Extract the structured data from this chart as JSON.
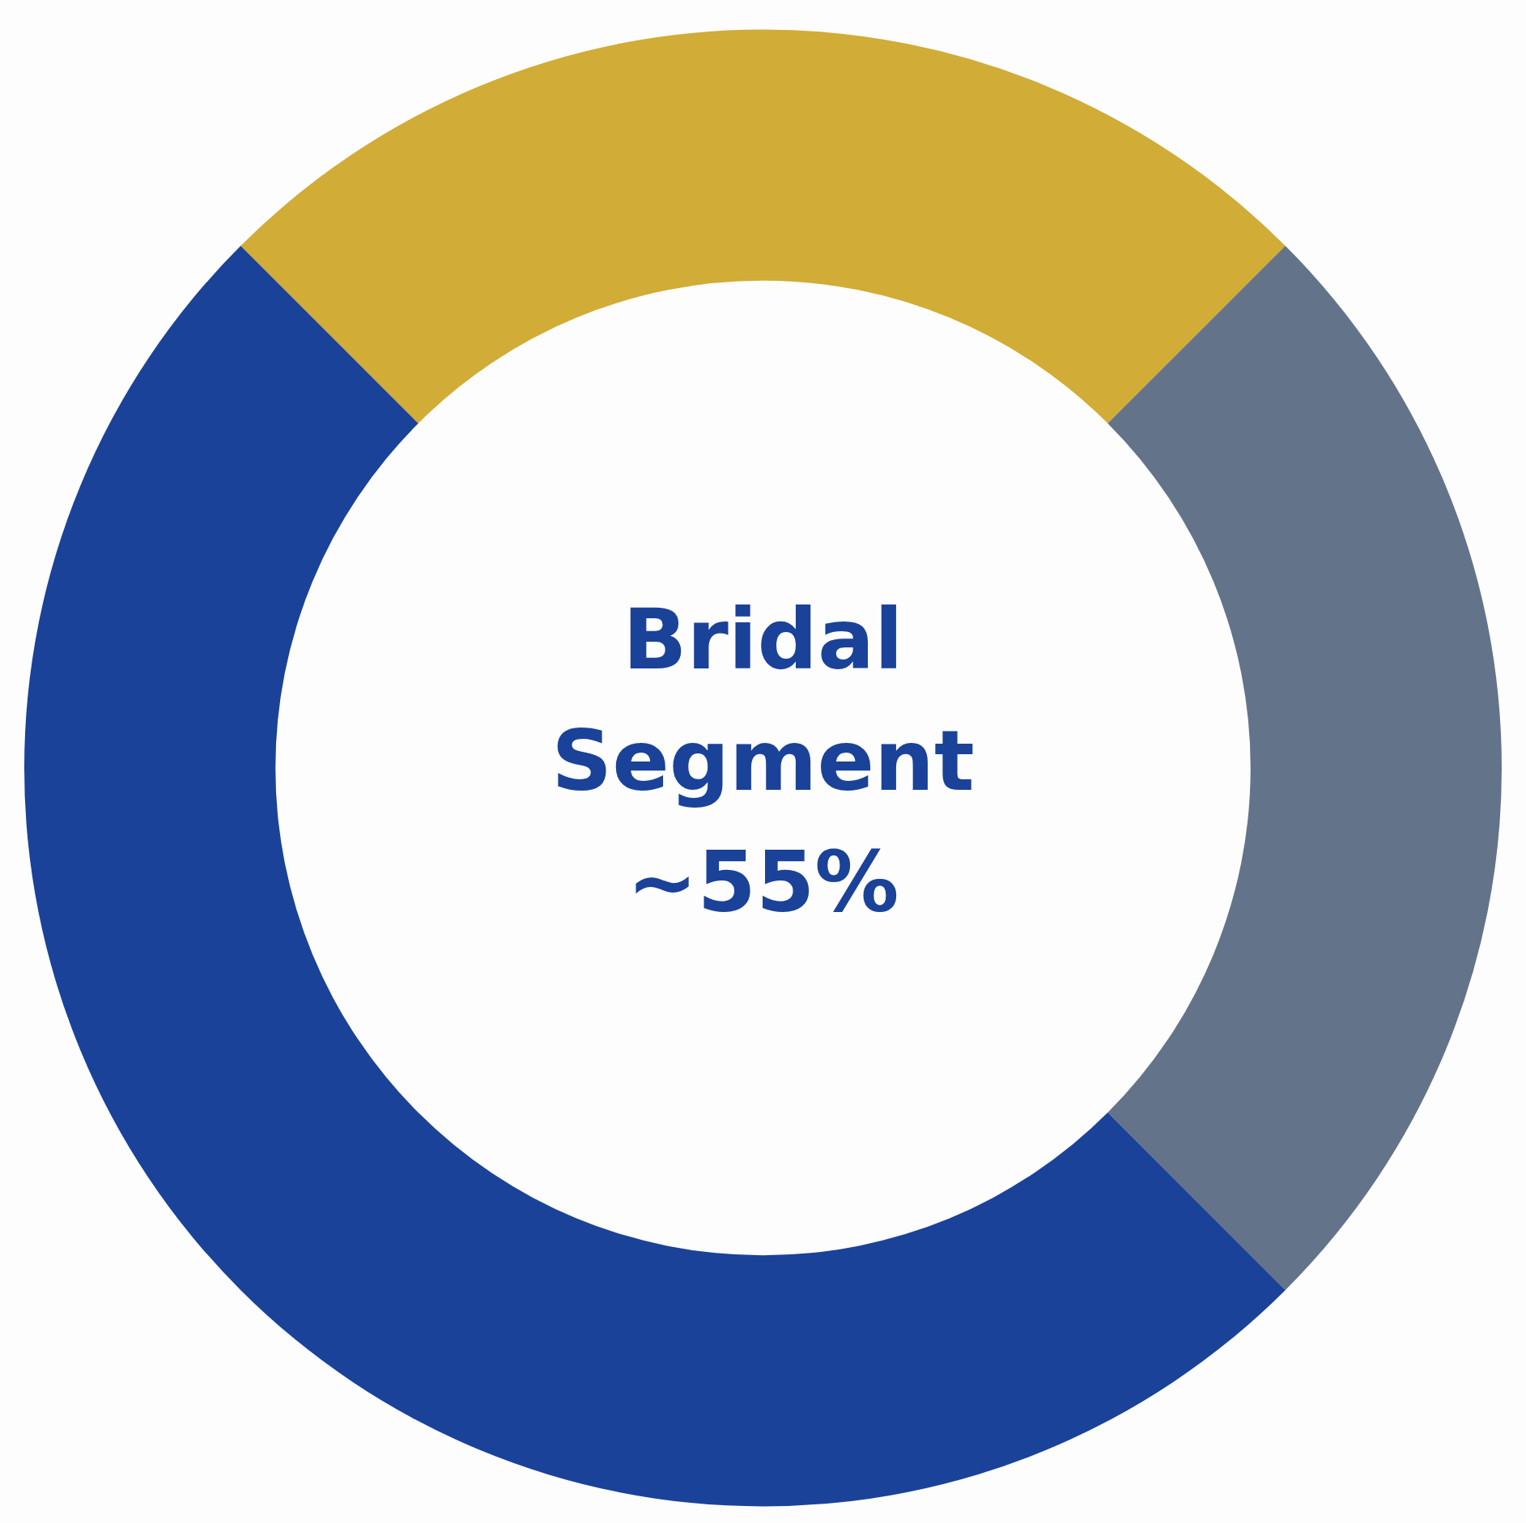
{
  "chart_data": {
    "type": "donut",
    "categories": [
      null,
      null,
      null
    ],
    "values": [
      25,
      25,
      50
    ],
    "colors": [
      "#d1ac36",
      "#63738a",
      "#1a4299"
    ],
    "annotations": [
      "Bridal Segment ~55%"
    ],
    "legend": false
  }
}
